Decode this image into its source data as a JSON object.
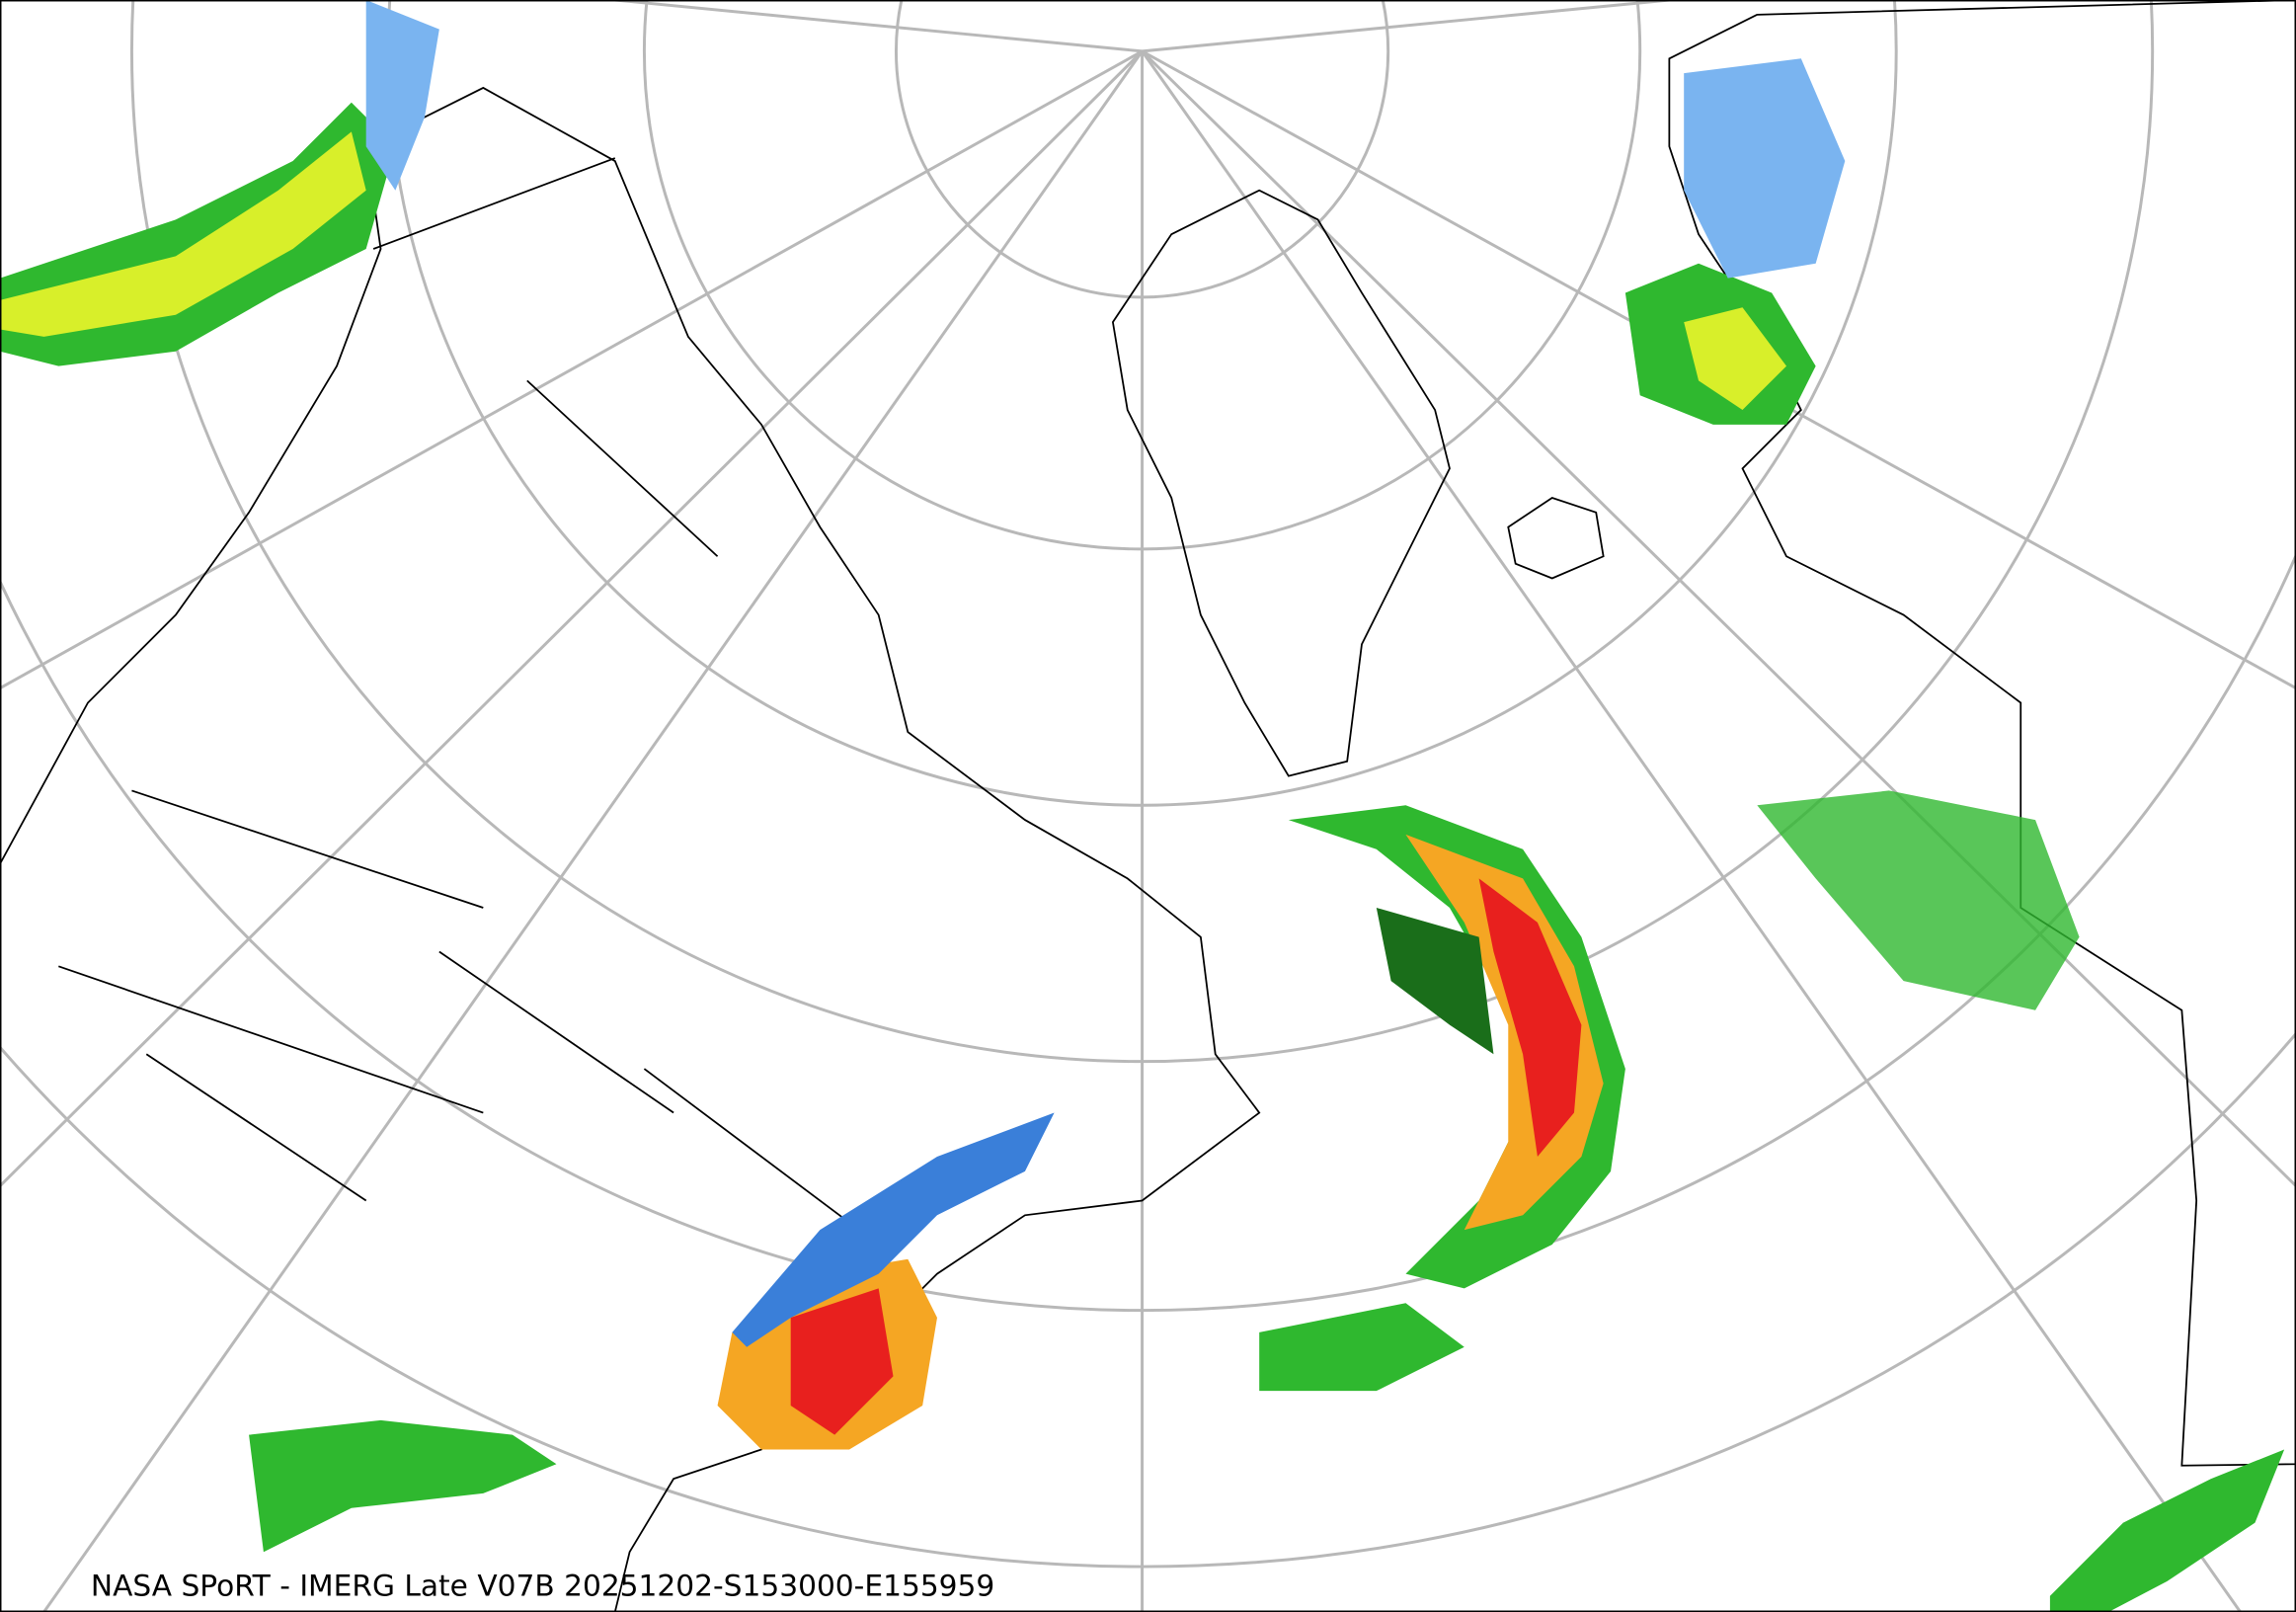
{
  "caption": "NASA SPoRT - IMERG Late V07B 20251202-S153000-E155959"
}
